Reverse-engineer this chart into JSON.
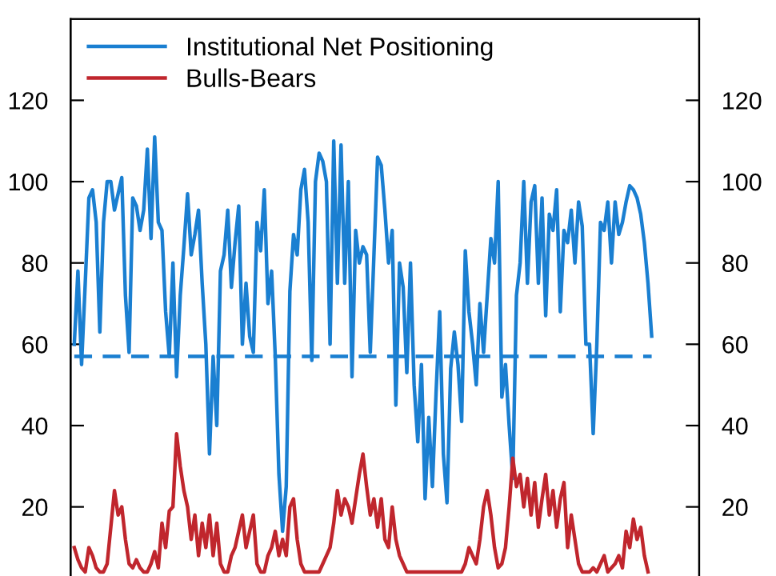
{
  "chart_data": {
    "type": "line",
    "categories": [
      null,
      null,
      null,
      null,
      null,
      null,
      null,
      null,
      null,
      null,
      null,
      null,
      null,
      null,
      null,
      null,
      null,
      null,
      null,
      null,
      null,
      null,
      null,
      null,
      null,
      null,
      null,
      null,
      null,
      null,
      null,
      null,
      null,
      null,
      null,
      null,
      null,
      null,
      null,
      null,
      null,
      null,
      null,
      null,
      null,
      null,
      null,
      null,
      null,
      null,
      null,
      null,
      null,
      null,
      null,
      null,
      null,
      null,
      null,
      null,
      null,
      null,
      null,
      null,
      null,
      null,
      null,
      null,
      null,
      null,
      null,
      null,
      null,
      null,
      null,
      null,
      null,
      null,
      null,
      null,
      null,
      null,
      null,
      null,
      null,
      null,
      null,
      null,
      null,
      null,
      null,
      null,
      null,
      null,
      null,
      null,
      null,
      null,
      null,
      null,
      null,
      null,
      null,
      null,
      null,
      null,
      null,
      null,
      null,
      null,
      null,
      null,
      null,
      null,
      null,
      null,
      null,
      null,
      null,
      null,
      null,
      null,
      null,
      null,
      null,
      null,
      null,
      null,
      null,
      null,
      null,
      null,
      null,
      null,
      null,
      null,
      null,
      null,
      null,
      null,
      null,
      null,
      null,
      null,
      null,
      null,
      null,
      null,
      null,
      null,
      null,
      null,
      null,
      null,
      null,
      null,
      null,
      null,
      null
    ],
    "series": [
      {
        "name": "Institutional Net Positioning",
        "color": "#1a7fd1",
        "values": [
          60,
          78,
          55,
          75,
          96,
          98,
          90,
          63,
          90,
          100,
          100,
          93,
          97,
          101,
          72,
          58,
          96,
          94,
          88,
          93,
          108,
          86,
          111,
          90,
          88,
          68,
          57,
          80,
          52,
          72,
          84,
          97,
          82,
          87,
          93,
          75,
          60,
          33,
          57,
          40,
          78,
          82,
          93,
          74,
          85,
          94,
          60,
          75,
          62,
          58,
          90,
          83,
          98,
          70,
          78,
          57,
          28,
          14,
          25,
          73,
          87,
          82,
          98,
          103,
          90,
          56,
          100,
          107,
          105,
          100,
          60,
          110,
          75,
          109,
          75,
          100,
          52,
          88,
          80,
          84,
          82,
          58,
          82,
          106,
          104,
          93,
          80,
          88,
          45,
          80,
          74,
          53,
          80,
          50,
          36,
          55,
          22,
          42,
          25,
          48,
          68,
          33,
          21,
          54,
          63,
          55,
          41,
          83,
          68,
          60,
          50,
          70,
          58,
          72,
          86,
          80,
          100,
          47,
          55,
          40,
          27,
          72,
          80,
          100,
          75,
          95,
          99,
          75,
          96,
          67,
          92,
          88,
          98,
          68,
          88,
          85,
          93,
          80,
          95,
          89,
          60,
          60,
          38,
          60,
          90,
          88,
          95,
          80,
          95,
          87,
          90,
          95,
          99,
          98,
          96,
          92,
          85,
          75,
          62
        ]
      },
      {
        "name": "Bulls-Bears",
        "color": "#c0262d",
        "values": [
          10,
          7,
          5,
          4,
          10,
          8,
          5,
          4,
          4,
          6,
          15,
          24,
          18,
          20,
          12,
          6,
          5,
          7,
          5,
          4,
          4,
          6,
          9,
          5,
          16,
          10,
          19,
          20,
          38,
          30,
          24,
          20,
          12,
          18,
          8,
          16,
          10,
          18,
          8,
          16,
          6,
          4,
          4,
          8,
          10,
          14,
          18,
          10,
          14,
          18,
          6,
          4,
          4,
          8,
          10,
          14,
          8,
          12,
          8,
          20,
          22,
          12,
          6,
          4,
          4,
          4,
          4,
          4,
          6,
          8,
          10,
          16,
          24,
          18,
          22,
          20,
          16,
          22,
          28,
          33,
          25,
          18,
          22,
          15,
          22,
          12,
          10,
          20,
          12,
          8,
          6,
          4,
          4,
          4,
          4,
          4,
          4,
          4,
          4,
          4,
          4,
          4,
          4,
          4,
          4,
          4,
          4,
          6,
          10,
          8,
          6,
          12,
          20,
          24,
          18,
          10,
          5,
          6,
          10,
          20,
          32,
          25,
          28,
          20,
          27,
          18,
          26,
          15,
          22,
          28,
          18,
          24,
          15,
          22,
          26,
          10,
          18,
          12,
          6,
          4,
          4,
          4,
          5,
          4,
          6,
          8,
          4,
          5,
          6,
          8,
          5,
          14,
          10,
          17,
          12,
          15,
          8,
          4,
          null
        ]
      }
    ],
    "ylim": [
      3,
      140
    ],
    "yticks": [
      20,
      40,
      60,
      80,
      100,
      120
    ],
    "y2lim": [
      3,
      140
    ],
    "y2ticks": [
      20,
      40,
      60,
      80,
      100,
      120
    ],
    "ref_lines": [
      {
        "axis": "y",
        "value": 57,
        "color": "#1a7fd1",
        "line_style": "dashed"
      }
    ],
    "tick_labels": "y",
    "legend": "top left",
    "grid": false,
    "marker": "none",
    "line_style": "solid"
  }
}
